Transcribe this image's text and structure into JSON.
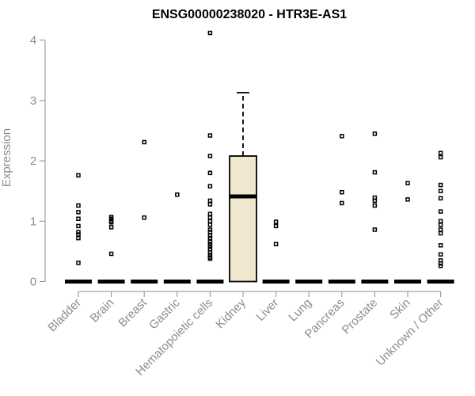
{
  "chart_data": {
    "type": "box",
    "title": "ENSG00000238020 - HTR3E-AS1",
    "ylabel": "Expression",
    "xlabel": "",
    "ylim": [
      0,
      4.2
    ],
    "yticks": [
      0,
      1,
      2,
      3,
      4
    ],
    "categories": [
      "Bladder",
      "Brain",
      "Breast",
      "Gastric",
      "Hematopoietic cells",
      "Kidney",
      "Liver",
      "Lung",
      "Pancreas",
      "Prostate",
      "Skin",
      "Unknown / Other"
    ],
    "box_color": "#efe8cf",
    "boxes": [
      {
        "category": "Bladder",
        "min": 0,
        "q1": 0,
        "median": 0,
        "q3": 0,
        "max": 0,
        "outliers": [
          1.76,
          1.26,
          1.15,
          1.04,
          0.92,
          0.82,
          0.78,
          0.72,
          0.31
        ]
      },
      {
        "category": "Brain",
        "min": 0,
        "q1": 0,
        "median": 0,
        "q3": 0,
        "max": 0,
        "outliers": [
          1.07,
          1.04,
          1.0,
          0.98,
          0.9,
          0.46
        ]
      },
      {
        "category": "Breast",
        "min": 0,
        "q1": 0,
        "median": 0,
        "q3": 0,
        "max": 0,
        "outliers": [
          2.31,
          1.06
        ]
      },
      {
        "category": "Gastric",
        "min": 0,
        "q1": 0,
        "median": 0,
        "q3": 0,
        "max": 0,
        "outliers": [
          1.44
        ]
      },
      {
        "category": "Hematopoietic cells",
        "min": 0,
        "q1": 0,
        "median": 0,
        "q3": 0,
        "max": 0,
        "outliers": [
          4.12,
          2.42,
          2.08,
          1.8,
          1.58,
          1.34,
          1.28,
          1.12,
          1.06,
          1.0,
          0.94,
          0.86,
          0.82,
          0.76,
          0.72,
          0.66,
          0.62,
          0.58,
          0.54,
          0.48,
          0.44,
          0.4,
          0.38
        ]
      },
      {
        "category": "Kidney",
        "min": 0,
        "q1": 0,
        "median": 1.41,
        "q3": 2.08,
        "max": 3.13,
        "outliers": []
      },
      {
        "category": "Liver",
        "min": 0,
        "q1": 0,
        "median": 0,
        "q3": 0,
        "max": 0,
        "outliers": [
          0.99,
          0.92,
          0.62
        ]
      },
      {
        "category": "Lung",
        "min": 0,
        "q1": 0,
        "median": 0,
        "q3": 0,
        "max": 0,
        "outliers": []
      },
      {
        "category": "Pancreas",
        "min": 0,
        "q1": 0,
        "median": 0,
        "q3": 0,
        "max": 0,
        "outliers": [
          2.41,
          1.48,
          1.3
        ]
      },
      {
        "category": "Prostate",
        "min": 0,
        "q1": 0,
        "median": 0,
        "q3": 0,
        "max": 0,
        "outliers": [
          2.45,
          1.81,
          1.39,
          1.34,
          1.26,
          0.86
        ]
      },
      {
        "category": "Skin",
        "min": 0,
        "q1": 0,
        "median": 0,
        "q3": 0,
        "max": 0,
        "outliers": [
          1.63,
          1.36
        ]
      },
      {
        "category": "Unknown / Other",
        "min": 0,
        "q1": 0,
        "median": 0,
        "q3": 0,
        "max": 0,
        "outliers": [
          2.13,
          2.06,
          1.6,
          1.5,
          1.38,
          1.16,
          1.0,
          0.94,
          0.86,
          0.8,
          0.6,
          0.45,
          0.35,
          0.3,
          0.26
        ]
      }
    ]
  }
}
